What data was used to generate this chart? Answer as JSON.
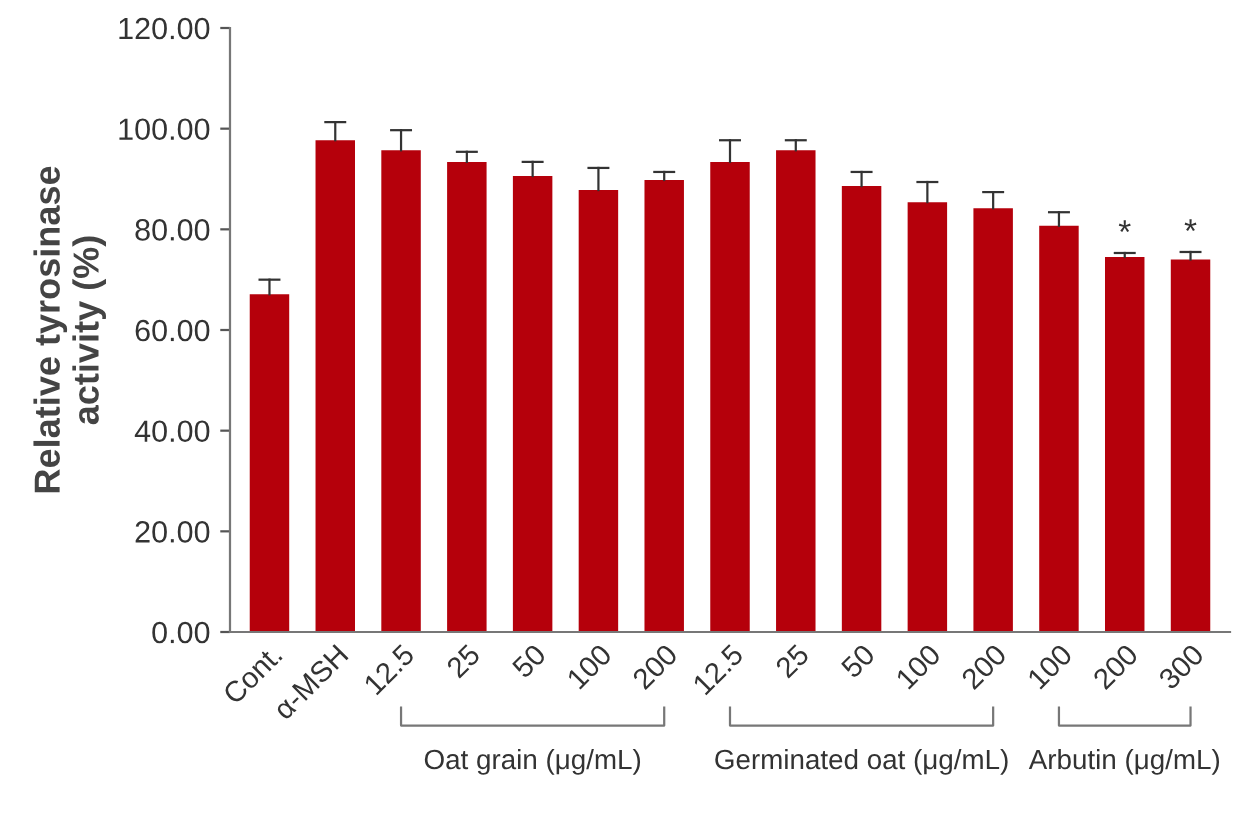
{
  "chart_data": {
    "type": "bar",
    "ylabel": "Relative tyrosinase\nactivity (%)",
    "categories": [
      "Cont.",
      "α-MSH",
      "12.5",
      "25",
      "50",
      "100",
      "200",
      "12.5",
      "25",
      "50",
      "100",
      "200",
      "100",
      "200",
      "300"
    ],
    "values": [
      67.1,
      97.7,
      95.7,
      93.4,
      90.6,
      87.8,
      89.8,
      93.4,
      95.7,
      88.6,
      85.4,
      84.2,
      80.7,
      74.5,
      74.0
    ],
    "errors": [
      [
        67.1,
        70.0
      ],
      [
        97.7,
        101.3
      ],
      [
        95.7,
        99.7
      ],
      [
        93.4,
        95.4
      ],
      [
        90.6,
        93.4
      ],
      [
        87.8,
        92.2
      ],
      [
        89.8,
        91.4
      ],
      [
        93.4,
        97.7
      ],
      [
        95.7,
        97.7
      ],
      [
        88.6,
        91.4
      ],
      [
        85.4,
        89.4
      ],
      [
        84.2,
        87.4
      ],
      [
        80.7,
        83.4
      ],
      [
        74.5,
        75.3
      ],
      [
        74.0,
        75.5
      ]
    ],
    "color": "#b5000b",
    "ylim": [
      0,
      120
    ],
    "yticks": [
      {
        "value": 0,
        "label": "0.00"
      },
      {
        "value": 20,
        "label": "20.00"
      },
      {
        "value": 40,
        "label": "40.00"
      },
      {
        "value": 60,
        "label": "60.00"
      },
      {
        "value": 80,
        "label": "80.00"
      },
      {
        "value": 100,
        "label": "100.00"
      },
      {
        "value": 120,
        "label": "120.00"
      }
    ],
    "annotations": [
      "*",
      "*",
      "Oat grain (μg/mL)",
      "Germinated oat (μg/mL)",
      "Arbutin (μg/mL)"
    ],
    "grid": false
  }
}
